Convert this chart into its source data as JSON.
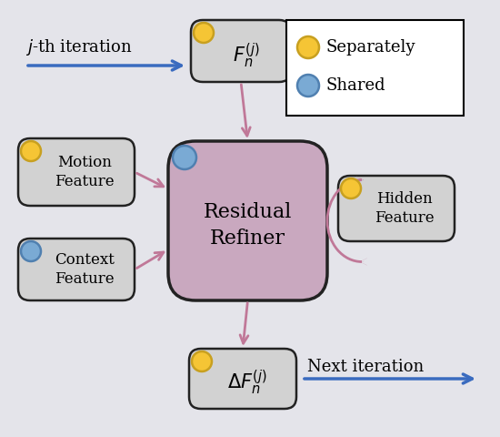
{
  "bg_color": "#e4e4ea",
  "box_color_main": "#c9a8bf",
  "box_color_side": "#d2d2d2",
  "box_edge_color": "#222222",
  "arrow_color_pink": "#c07898",
  "arrow_color_blue": "#3a6bbf",
  "yellow_circle": "#f5c535",
  "yellow_edge": "#c8a020",
  "blue_circle": "#7aaad4",
  "blue_edge": "#5080b0",
  "legend_bg": "#ffffff",
  "title": "Residual\nRefiner",
  "label_motion": "Motion\nFeature",
  "label_context": "Context\nFeature",
  "label_hidden": "Hidden\nFeature",
  "label_jth": "j-th iteration",
  "label_next": "Next iteration",
  "legend_separately": "Separately",
  "legend_shared": "Shared",
  "figw": 5.5,
  "figh": 4.8,
  "dpi": 100
}
